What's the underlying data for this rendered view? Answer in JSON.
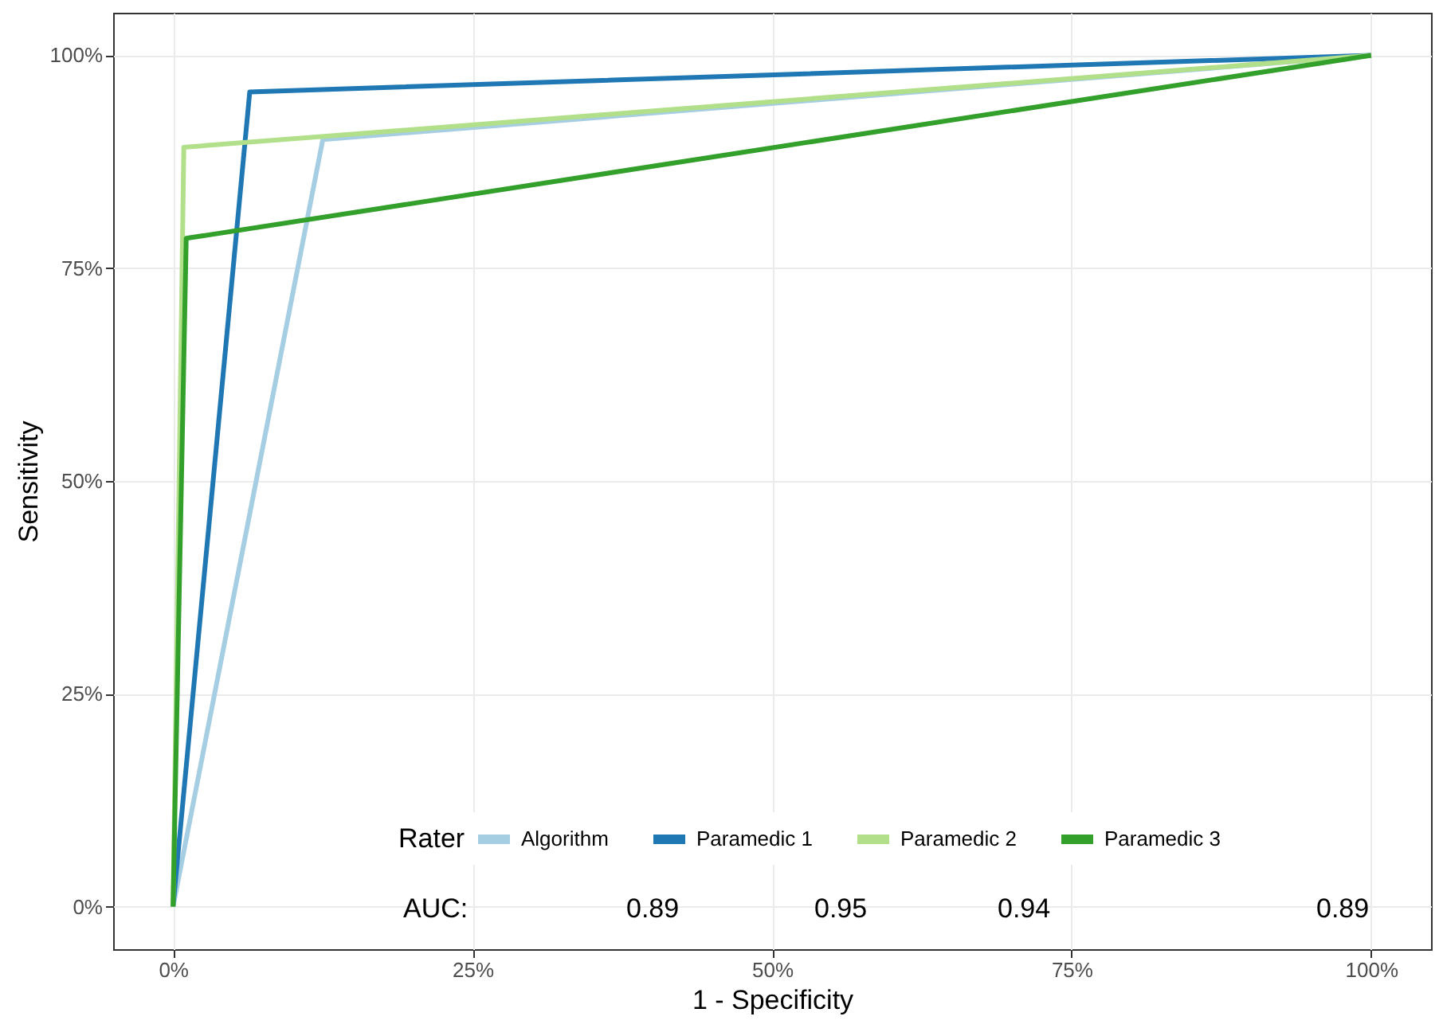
{
  "chart_data": {
    "type": "line",
    "xlabel": "1 - Specificity",
    "ylabel": "Sensitivity",
    "legend_title": "Rater",
    "series": [
      {
        "name": "Algorithm",
        "color": "#a6cee3",
        "x": [
          0,
          12.5,
          100
        ],
        "values": [
          0,
          90.1,
          100
        ]
      },
      {
        "name": "Paramedic 1",
        "color": "#1f78b4",
        "x": [
          0,
          6.4,
          100
        ],
        "values": [
          0,
          95.7,
          100
        ]
      },
      {
        "name": "Paramedic 2",
        "color": "#b2df8a",
        "x": [
          0,
          0.9,
          100
        ],
        "values": [
          0,
          89.2,
          100
        ]
      },
      {
        "name": "Paramedic 3",
        "color": "#33a02c",
        "x": [
          0,
          1.1,
          100
        ],
        "values": [
          0,
          78.5,
          100
        ]
      }
    ],
    "xlim": [
      -5,
      105
    ],
    "ylim": [
      -5,
      105
    ],
    "xticks": [
      {
        "value": 0,
        "label": "0%"
      },
      {
        "value": 25,
        "label": "25%"
      },
      {
        "value": 50,
        "label": "50%"
      },
      {
        "value": 75,
        "label": "75%"
      },
      {
        "value": 100,
        "label": "100%"
      }
    ],
    "yticks": [
      {
        "value": 0,
        "label": "0%"
      },
      {
        "value": 25,
        "label": "25%"
      },
      {
        "value": 50,
        "label": "50%"
      },
      {
        "value": 75,
        "label": "75%"
      },
      {
        "value": 100,
        "label": "100%"
      }
    ],
    "grid": true,
    "legend": "bottom right",
    "marker": "none",
    "line_style": "solid",
    "annotations": [
      "AUC:",
      "0.89",
      "0.95",
      "0.94",
      "0.89"
    ]
  }
}
